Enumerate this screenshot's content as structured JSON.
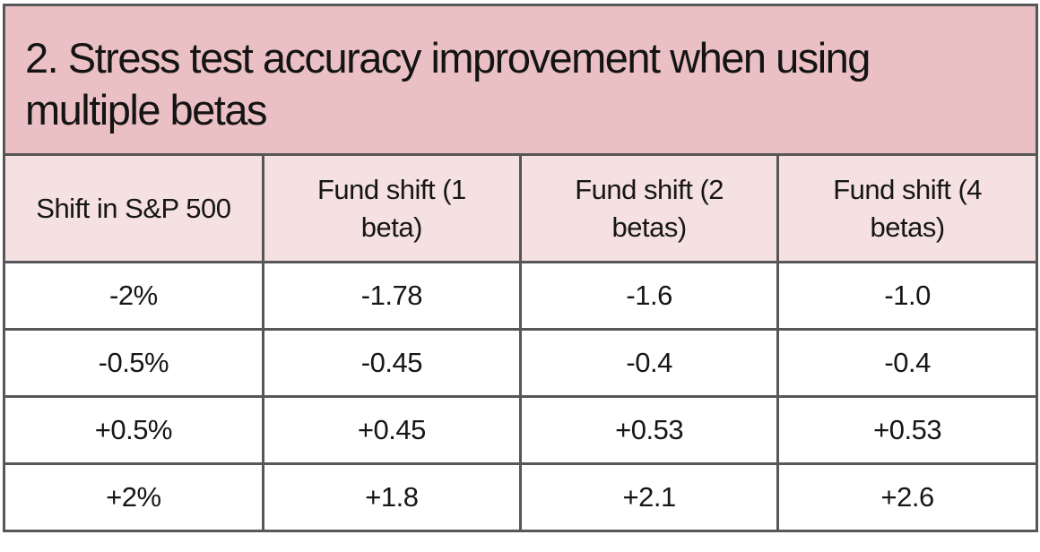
{
  "figure": {
    "title": "2. Stress test accuracy improvement when using multiple betas"
  },
  "chart_data": {
    "type": "table",
    "title": "2. Stress test accuracy improvement when using multiple betas",
    "columns": [
      "Shift in S&P 500",
      "Fund shift (1 beta)",
      "Fund shift (2 betas)",
      "Fund shift (4 betas)"
    ],
    "rows": [
      [
        "-2%",
        "-1.78",
        "-1.6",
        "-1.0"
      ],
      [
        "-0.5%",
        "-0.45",
        "-0.4",
        "-0.4"
      ],
      [
        "+0.5%",
        "+0.45",
        "+0.53",
        "+0.53"
      ],
      [
        "+2%",
        "+1.8",
        "+2.1",
        "+2.6"
      ]
    ],
    "series": [
      {
        "name": "Fund shift (1 beta)",
        "x": [
          -2,
          -0.5,
          0.5,
          2
        ],
        "values": [
          -1.78,
          -0.45,
          0.45,
          1.8
        ]
      },
      {
        "name": "Fund shift (2 betas)",
        "x": [
          -2,
          -0.5,
          0.5,
          2
        ],
        "values": [
          -1.6,
          -0.4,
          0.53,
          2.1
        ]
      },
      {
        "name": "Fund shift (4 betas)",
        "x": [
          -2,
          -0.5,
          0.5,
          2
        ],
        "values": [
          -1.0,
          -0.4,
          0.53,
          2.6
        ]
      }
    ],
    "xlabel": "Shift in S&P 500",
    "ylabel": "Fund shift"
  },
  "colors": {
    "title_background": "#ebc0c4",
    "header_background": "#f5e0e2",
    "border": "#57575a",
    "text": "#161616",
    "cell_background": "#ffffff"
  }
}
